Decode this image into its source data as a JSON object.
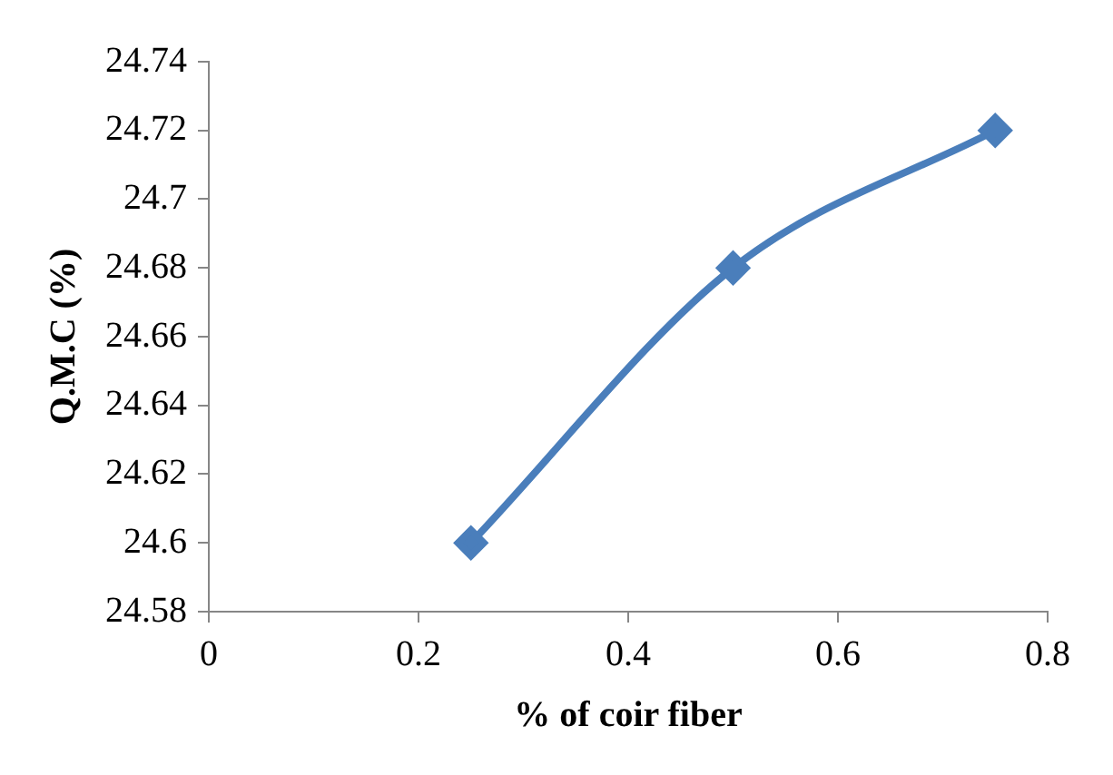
{
  "chart_data": {
    "type": "line",
    "xlabel": "% of coir fiber",
    "ylabel": "Q.M.C (%)",
    "x": [
      0.25,
      0.5,
      0.75
    ],
    "series": [
      {
        "color": "#4a7ebb",
        "values": [
          24.6,
          24.68,
          24.72
        ]
      }
    ],
    "xlim": [
      0,
      0.8
    ],
    "xticks": [
      0,
      0.2,
      0.4,
      0.6,
      0.8
    ],
    "ylim": [
      24.58,
      24.74
    ],
    "yticks": [
      24.58,
      24.6,
      24.62,
      24.64,
      24.66,
      24.68,
      24.7,
      24.72,
      24.74
    ],
    "grid": false,
    "legend": false,
    "marker": "diamond",
    "line_style": "solid"
  }
}
